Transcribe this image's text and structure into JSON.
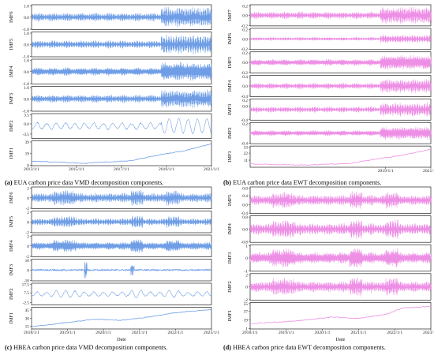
{
  "captions": {
    "a": {
      "tag": "(a)",
      "text": "EUA carbon price data VMD decomposition components."
    },
    "b": {
      "tag": "(b)",
      "text": "EUA carbon price data EWT decomposition components."
    },
    "c": {
      "tag": "(c)",
      "text": "HBEA carbon price data VMD decomposition components."
    },
    "d": {
      "tag": "(d)",
      "text": "HBEA carbon price data EWT decomposition components."
    }
  },
  "colors": {
    "vmd": "#6f9ee6",
    "ewt": "#ee8fe6",
    "axis": "#222222"
  },
  "chart_data": [
    {
      "id": "a",
      "type": "line",
      "method": "VMD",
      "dataset": "EUA carbon price data",
      "xlabel": "",
      "x_ticks": [
        "2013/1/1",
        "2015/1/1",
        "2017/1/1",
        "2019/1/1",
        "2021/1/1"
      ],
      "x_range": [
        "2013/1/1",
        "2021/1/1"
      ],
      "series": [
        {
          "name": "IMF6",
          "ylim": [
            -1.0,
            1.0
          ],
          "ticks": [
            "1.0",
            "0.0",
            "-1.0"
          ],
          "kind": "osc",
          "amp": 0.85
        },
        {
          "name": "IMF5",
          "ylim": [
            -1.0,
            1.0
          ],
          "ticks": [
            "1.0",
            "0.0",
            "-1.0"
          ],
          "kind": "osc",
          "amp": 0.8
        },
        {
          "name": "IMF4",
          "ylim": [
            -1.0,
            1.0
          ],
          "ticks": [
            "1.0",
            "0.0",
            "-1.0"
          ],
          "kind": "osc",
          "amp": 0.8
        },
        {
          "name": "IMF3",
          "ylim": [
            -1.0,
            1.0
          ],
          "ticks": [
            "1.0",
            "0.0",
            "-1.0"
          ],
          "kind": "osc",
          "amp": 0.8
        },
        {
          "name": "IMF2",
          "ylim": [
            -5.0,
            3.5
          ],
          "ticks": [
            "3.5",
            "0.0",
            "-3.5"
          ],
          "kind": "slow",
          "amp": 0.6
        },
        {
          "name": "IMF1",
          "ylim": [
            0,
            39
          ],
          "ticks": [
            "39",
            "19",
            "0"
          ],
          "kind": "trend",
          "trend": [
            [
              0,
              0.18
            ],
            [
              0.3,
              0.1
            ],
            [
              0.55,
              0.2
            ],
            [
              0.72,
              0.45
            ],
            [
              0.85,
              0.6
            ],
            [
              1,
              0.88
            ]
          ]
        }
      ]
    },
    {
      "id": "b",
      "type": "line",
      "method": "EWT",
      "dataset": "EUA carbon price data",
      "xlabel": "",
      "x_ticks": [
        "2019/1/1",
        "2021/1/1"
      ],
      "x_range": [
        "2013/1/1",
        "2021/1/1"
      ],
      "series": [
        {
          "name": "IMF7",
          "ylim": [
            -0.2,
            0.2
          ],
          "ticks": [
            "0.2",
            "0.0",
            "-0.2"
          ],
          "kind": "osc",
          "amp": 0.85
        },
        {
          "name": "IMF6",
          "ylim": [
            -0.2,
            0.2
          ],
          "ticks": [
            "0.2",
            "0.0",
            "-0.2"
          ],
          "kind": "osc",
          "amp": 0.4
        },
        {
          "name": "IMF5",
          "ylim": [
            -0.2,
            0.2
          ],
          "ticks": [
            "0.2",
            "0.0",
            "-0.2"
          ],
          "kind": "osc",
          "amp": 0.75
        },
        {
          "name": "IMF4",
          "ylim": [
            -0.4,
            0.4
          ],
          "ticks": [
            "0.4",
            "0.0",
            "-0.4"
          ],
          "kind": "osc",
          "amp": 0.7
        },
        {
          "name": "IMF3",
          "ylim": [
            -0.4,
            0.2
          ],
          "ticks": [
            "0.2",
            "0.0",
            "-0.4"
          ],
          "kind": "osc",
          "amp": 0.7
        },
        {
          "name": "IMF2",
          "ylim": [
            -0.4,
            0.2
          ],
          "ticks": [
            "0.2",
            "-0.4"
          ],
          "kind": "osc",
          "amp": 0.65
        },
        {
          "name": "IMF1",
          "ylim": [
            0,
            33
          ],
          "ticks": [
            "33",
            "22",
            "11"
          ],
          "kind": "trend",
          "trend": [
            [
              0,
              0.15
            ],
            [
              0.3,
              0.1
            ],
            [
              0.55,
              0.18
            ],
            [
              0.72,
              0.42
            ],
            [
              0.85,
              0.58
            ],
            [
              1,
              0.85
            ]
          ]
        }
      ]
    },
    {
      "id": "c",
      "type": "line",
      "method": "VMD",
      "dataset": "HBEA carbon price data",
      "xlabel": "Date",
      "x_ticks": [
        "2018/1/1",
        "2019/1/1",
        "2020/1/1",
        "2021/1/1",
        "2022/1/1",
        "2023/1/1"
      ],
      "x_range": [
        "2018/1/1",
        "2023/1/1"
      ],
      "series": [
        {
          "name": "IMF6",
          "ylim": [
            -2,
            2
          ],
          "ticks": [
            "2",
            "0",
            "-2"
          ],
          "kind": "osc",
          "amp": 0.8
        },
        {
          "name": "IMF5",
          "ylim": [
            -2,
            2
          ],
          "ticks": [
            "2",
            "0",
            "-2"
          ],
          "kind": "osc",
          "amp": 0.6
        },
        {
          "name": "IMF4",
          "ylim": [
            -2,
            2
          ],
          "ticks": [
            "2",
            "0",
            "-2"
          ],
          "kind": "osc",
          "amp": 0.65
        },
        {
          "name": "IMF3",
          "ylim": [
            -10,
            10
          ],
          "ticks": [
            "10",
            "0",
            "-10"
          ],
          "kind": "spiky",
          "amp": 0.25
        },
        {
          "name": "IMF2",
          "ylim": [
            -5.0,
            17.5
          ],
          "ticks": [
            "17.5",
            "7.5",
            "-2.5"
          ],
          "kind": "slow",
          "amp": 0.35
        },
        {
          "name": "IMF1",
          "ylim": [
            10,
            50
          ],
          "ticks": [
            "45",
            "30",
            "15"
          ],
          "kind": "trend",
          "trend": [
            [
              0,
              0.1
            ],
            [
              0.2,
              0.3
            ],
            [
              0.35,
              0.45
            ],
            [
              0.5,
              0.4
            ],
            [
              0.65,
              0.55
            ],
            [
              0.8,
              0.75
            ],
            [
              1,
              0.9
            ]
          ]
        }
      ]
    },
    {
      "id": "d",
      "type": "line",
      "method": "EWT",
      "dataset": "HBEA carbon price data",
      "xlabel": "Date",
      "x_ticks": [
        "2018/1/1",
        "2019/1/1",
        "2020/1/1",
        "2021/1/1",
        "2022/1/1",
        "2023/1/1"
      ],
      "x_range": [
        "2018/1/1",
        "2023/1/1"
      ],
      "series": [
        {
          "name": "IMF5",
          "ylim": [
            -0.4,
            0.8
          ],
          "ticks": [
            "0.8",
            "0.4",
            "0.0",
            "-0.4"
          ],
          "kind": "osc",
          "amp": 0.7
        },
        {
          "name": "IMF4",
          "ylim": [
            -0.8,
            0.8
          ],
          "ticks": [
            "0.8",
            "0.0",
            "-0.8"
          ],
          "kind": "osc",
          "amp": 0.8
        },
        {
          "name": "IMF3",
          "ylim": [
            -1,
            1
          ],
          "ticks": [
            "1",
            "0",
            "-1"
          ],
          "kind": "osc",
          "amp": 0.8
        },
        {
          "name": "IMF2",
          "ylim": [
            -2,
            2
          ],
          "ticks": [
            "2",
            "0",
            "-2"
          ],
          "kind": "osc",
          "amp": 0.75
        },
        {
          "name": "IMF1",
          "ylim": [
            0,
            55
          ],
          "ticks": [
            "55",
            "37",
            "19",
            "1"
          ],
          "kind": "trend",
          "trend": [
            [
              0,
              0.2
            ],
            [
              0.25,
              0.3
            ],
            [
              0.45,
              0.45
            ],
            [
              0.6,
              0.4
            ],
            [
              0.75,
              0.55
            ],
            [
              0.85,
              0.8
            ],
            [
              1,
              0.85
            ]
          ]
        }
      ]
    }
  ]
}
